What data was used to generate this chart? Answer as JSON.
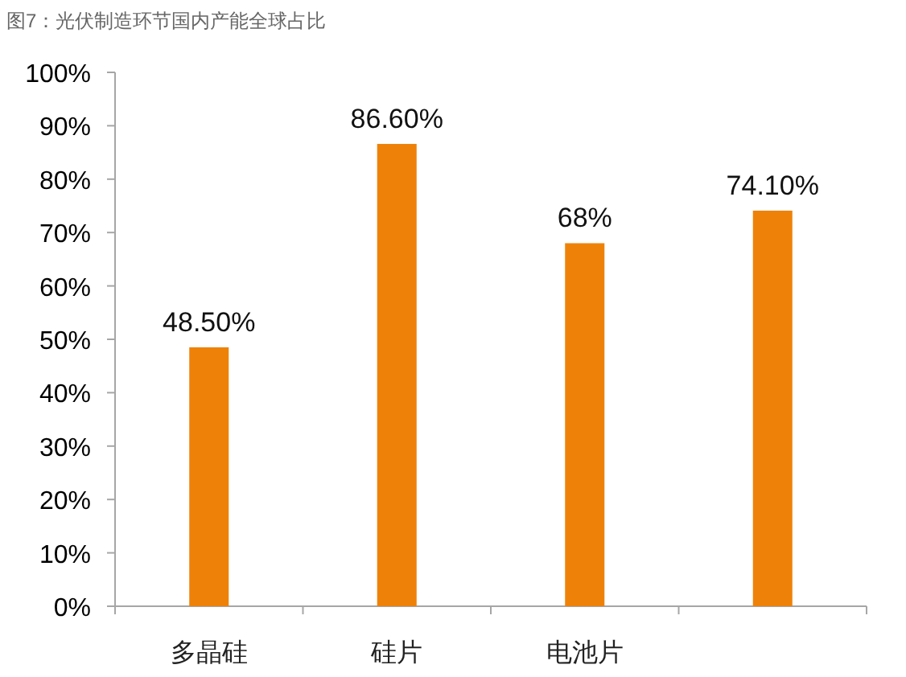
{
  "chart_data": {
    "type": "bar",
    "title": "图7：光伏制造环节国内产能全球占比",
    "categories": [
      "多晶硅",
      "硅片",
      "电池片",
      null
    ],
    "values": [
      48.5,
      86.6,
      68,
      74.1
    ],
    "value_labels": [
      "48.50%",
      "86.60%",
      "68%",
      "74.10%"
    ],
    "color": "#ee8208",
    "ylim": [
      0,
      100
    ],
    "yticks": [
      {
        "value": 0,
        "label": "0%"
      },
      {
        "value": 10,
        "label": "10%"
      },
      {
        "value": 20,
        "label": "20%"
      },
      {
        "value": 30,
        "label": "30%"
      },
      {
        "value": 40,
        "label": "40%"
      },
      {
        "value": 50,
        "label": "50%"
      },
      {
        "value": 60,
        "label": "60%"
      },
      {
        "value": 70,
        "label": "70%"
      },
      {
        "value": 80,
        "label": "80%"
      },
      {
        "value": 90,
        "label": "90%"
      },
      {
        "value": 100,
        "label": "100%"
      }
    ]
  }
}
